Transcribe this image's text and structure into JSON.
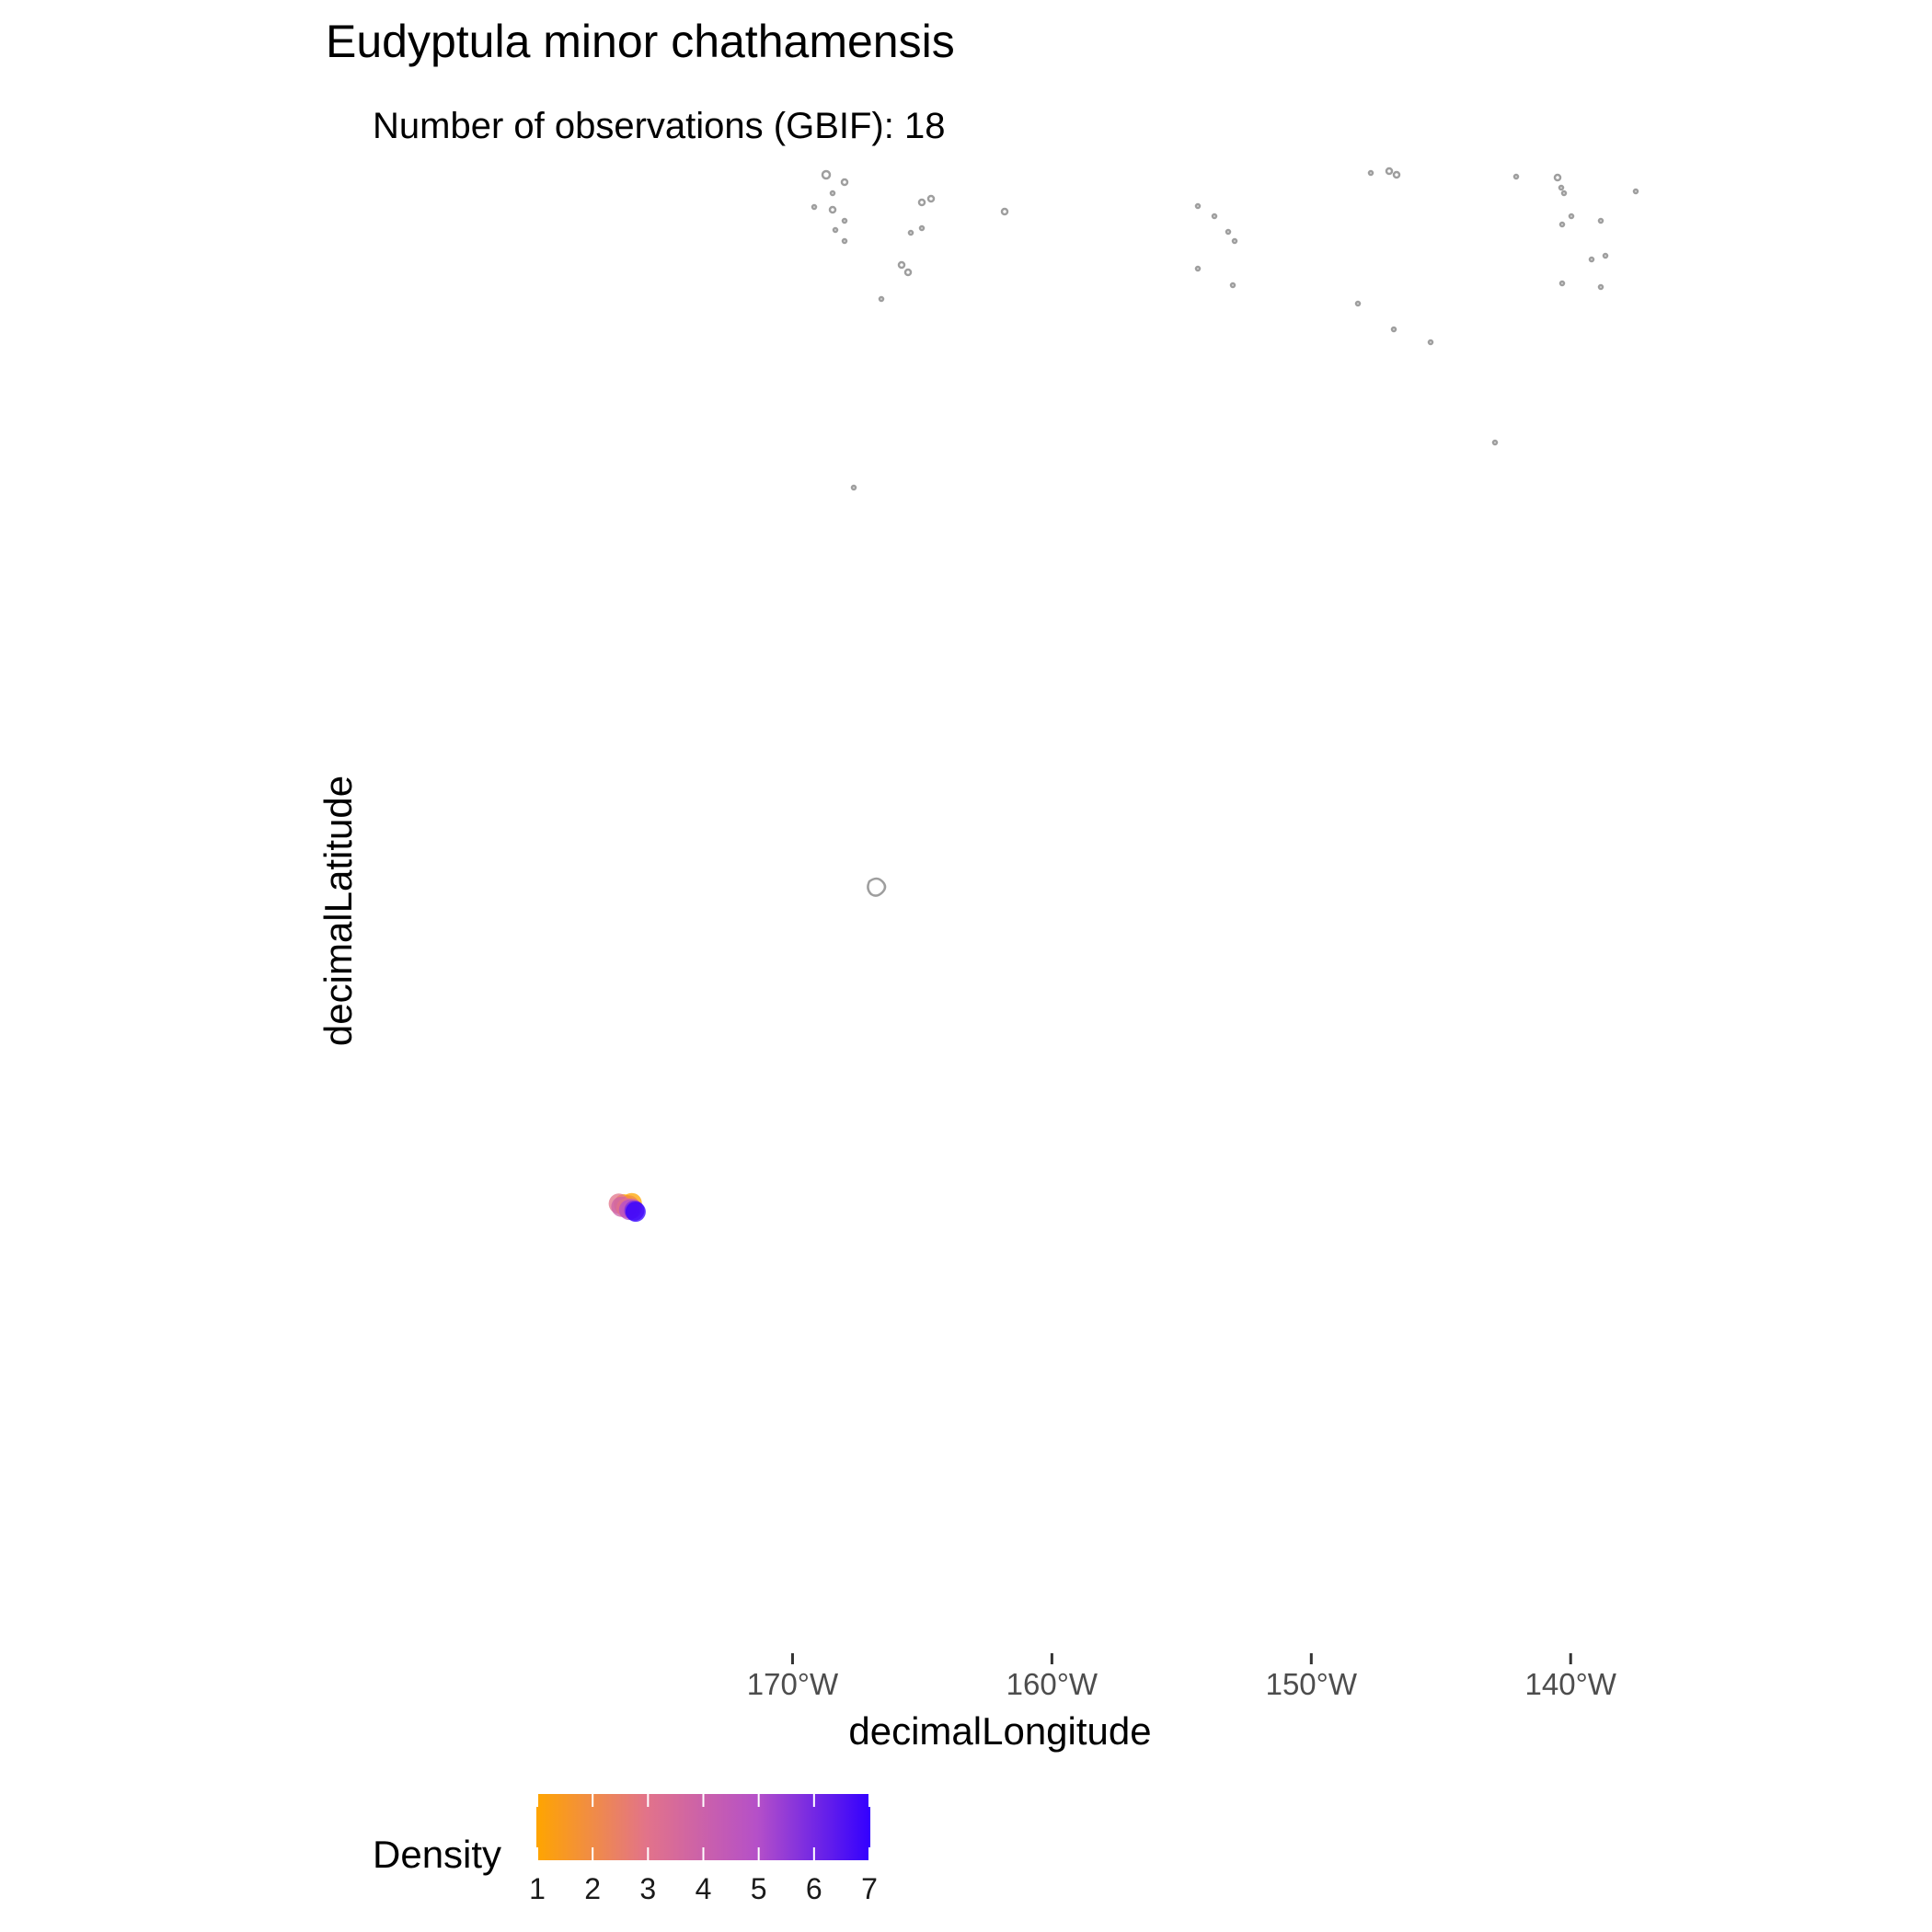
{
  "chart_data": {
    "type": "scatter",
    "title": "Eudyptula minor chathamensis",
    "subtitle": "Number of observations (GBIF): 18",
    "xlabel": "decimalLongitude",
    "ylabel": "decimalLatitude",
    "x_ticks": [
      {
        "value": -170,
        "label": "170°W"
      },
      {
        "value": -160,
        "label": "160°W"
      },
      {
        "value": -150,
        "label": "150°W"
      },
      {
        "value": -140,
        "label": "140°W"
      }
    ],
    "xlim": [
      -188,
      -136
    ],
    "ylim": [
      -80,
      40
    ],
    "grid": false,
    "basemap": "world land outlines (small Pacific islands)",
    "land_color": "#9e9e9e",
    "series": [
      {
        "points": [
          {
            "lon": -176.5,
            "lat": -44.0,
            "density": 1
          },
          {
            "lon": -176.2,
            "lat": -43.9,
            "density": 1
          },
          {
            "lon": -176.3,
            "lat": -44.1,
            "density": 2
          },
          {
            "lon": -176.7,
            "lat": -43.95,
            "density": 3
          },
          {
            "lon": -176.6,
            "lat": -44.2,
            "density": 4
          },
          {
            "lon": -176.4,
            "lat": -44.3,
            "density": 3
          },
          {
            "lon": -176.2,
            "lat": -44.35,
            "density": 4
          },
          {
            "lon": -176.3,
            "lat": -44.45,
            "density": 5
          },
          {
            "lon": -176.1,
            "lat": -44.5,
            "density": 6
          },
          {
            "lon": -176.05,
            "lat": -44.6,
            "density": 7
          }
        ]
      }
    ],
    "legend": {
      "title": "Density",
      "placement": "bottom-left",
      "min": 1,
      "max": 7,
      "breaks": [
        1,
        2,
        3,
        4,
        5,
        6,
        7
      ],
      "colors": [
        "#ffa500",
        "#e2738a",
        "#b550c8",
        "#3300ff"
      ]
    }
  }
}
